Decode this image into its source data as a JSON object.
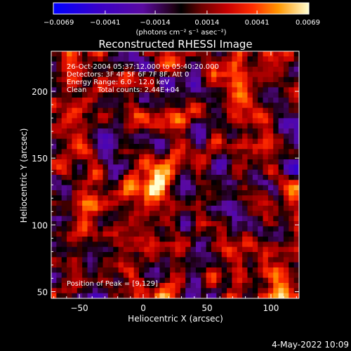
{
  "chart_data": {
    "type": "heatmap",
    "title": "Reconstructed RHESSI Image",
    "xlabel": "Heliocentric X (arcsec)",
    "ylabel": "Heliocentric Y (arcsec)",
    "xlim": [
      -72,
      122
    ],
    "ylim": [
      45,
      230
    ],
    "x_ticks": [
      -50,
      0,
      50,
      100
    ],
    "y_ticks": [
      50,
      100,
      150,
      200
    ],
    "x_tick_labels": [
      "−50",
      "0",
      "50",
      "100"
    ],
    "y_tick_labels": [
      "50",
      "100",
      "150",
      "200"
    ],
    "colorbar": {
      "min": -0.0069,
      "max": 0.0069,
      "ticks": [
        -0.0069,
        -0.0041,
        -0.0014,
        0.0014,
        0.0041,
        0.0069
      ],
      "tick_labels": [
        "−0.0069",
        "−0.0041",
        "−0.0014",
        "0.0014",
        "0.0041",
        "0.0069"
      ],
      "unit_label": "(photons cm⁻² s⁻¹ asec⁻²)",
      "colors": [
        "#0000ff",
        "#5a0aa0",
        "#000000",
        "#b40000",
        "#ff2800",
        "#ff9b00",
        "#ffffc8"
      ]
    },
    "annotations": [
      "26-Oct-2004 05:37:12.000 to 05:40:20.000",
      "Detectors: 3F 4F 5F 6F 7F 8F, Att 0",
      "Energy Range: 6.0 - 12.0 keV",
      "Clean     Total counts: 2.44E+04"
    ],
    "peak_label": "Position of Peak = [9,129]",
    "peak_position": [
      9,
      129
    ],
    "peak_value": 0.0069,
    "timestamp": "4-May-2022 10:09",
    "background_level": 0.0
  }
}
